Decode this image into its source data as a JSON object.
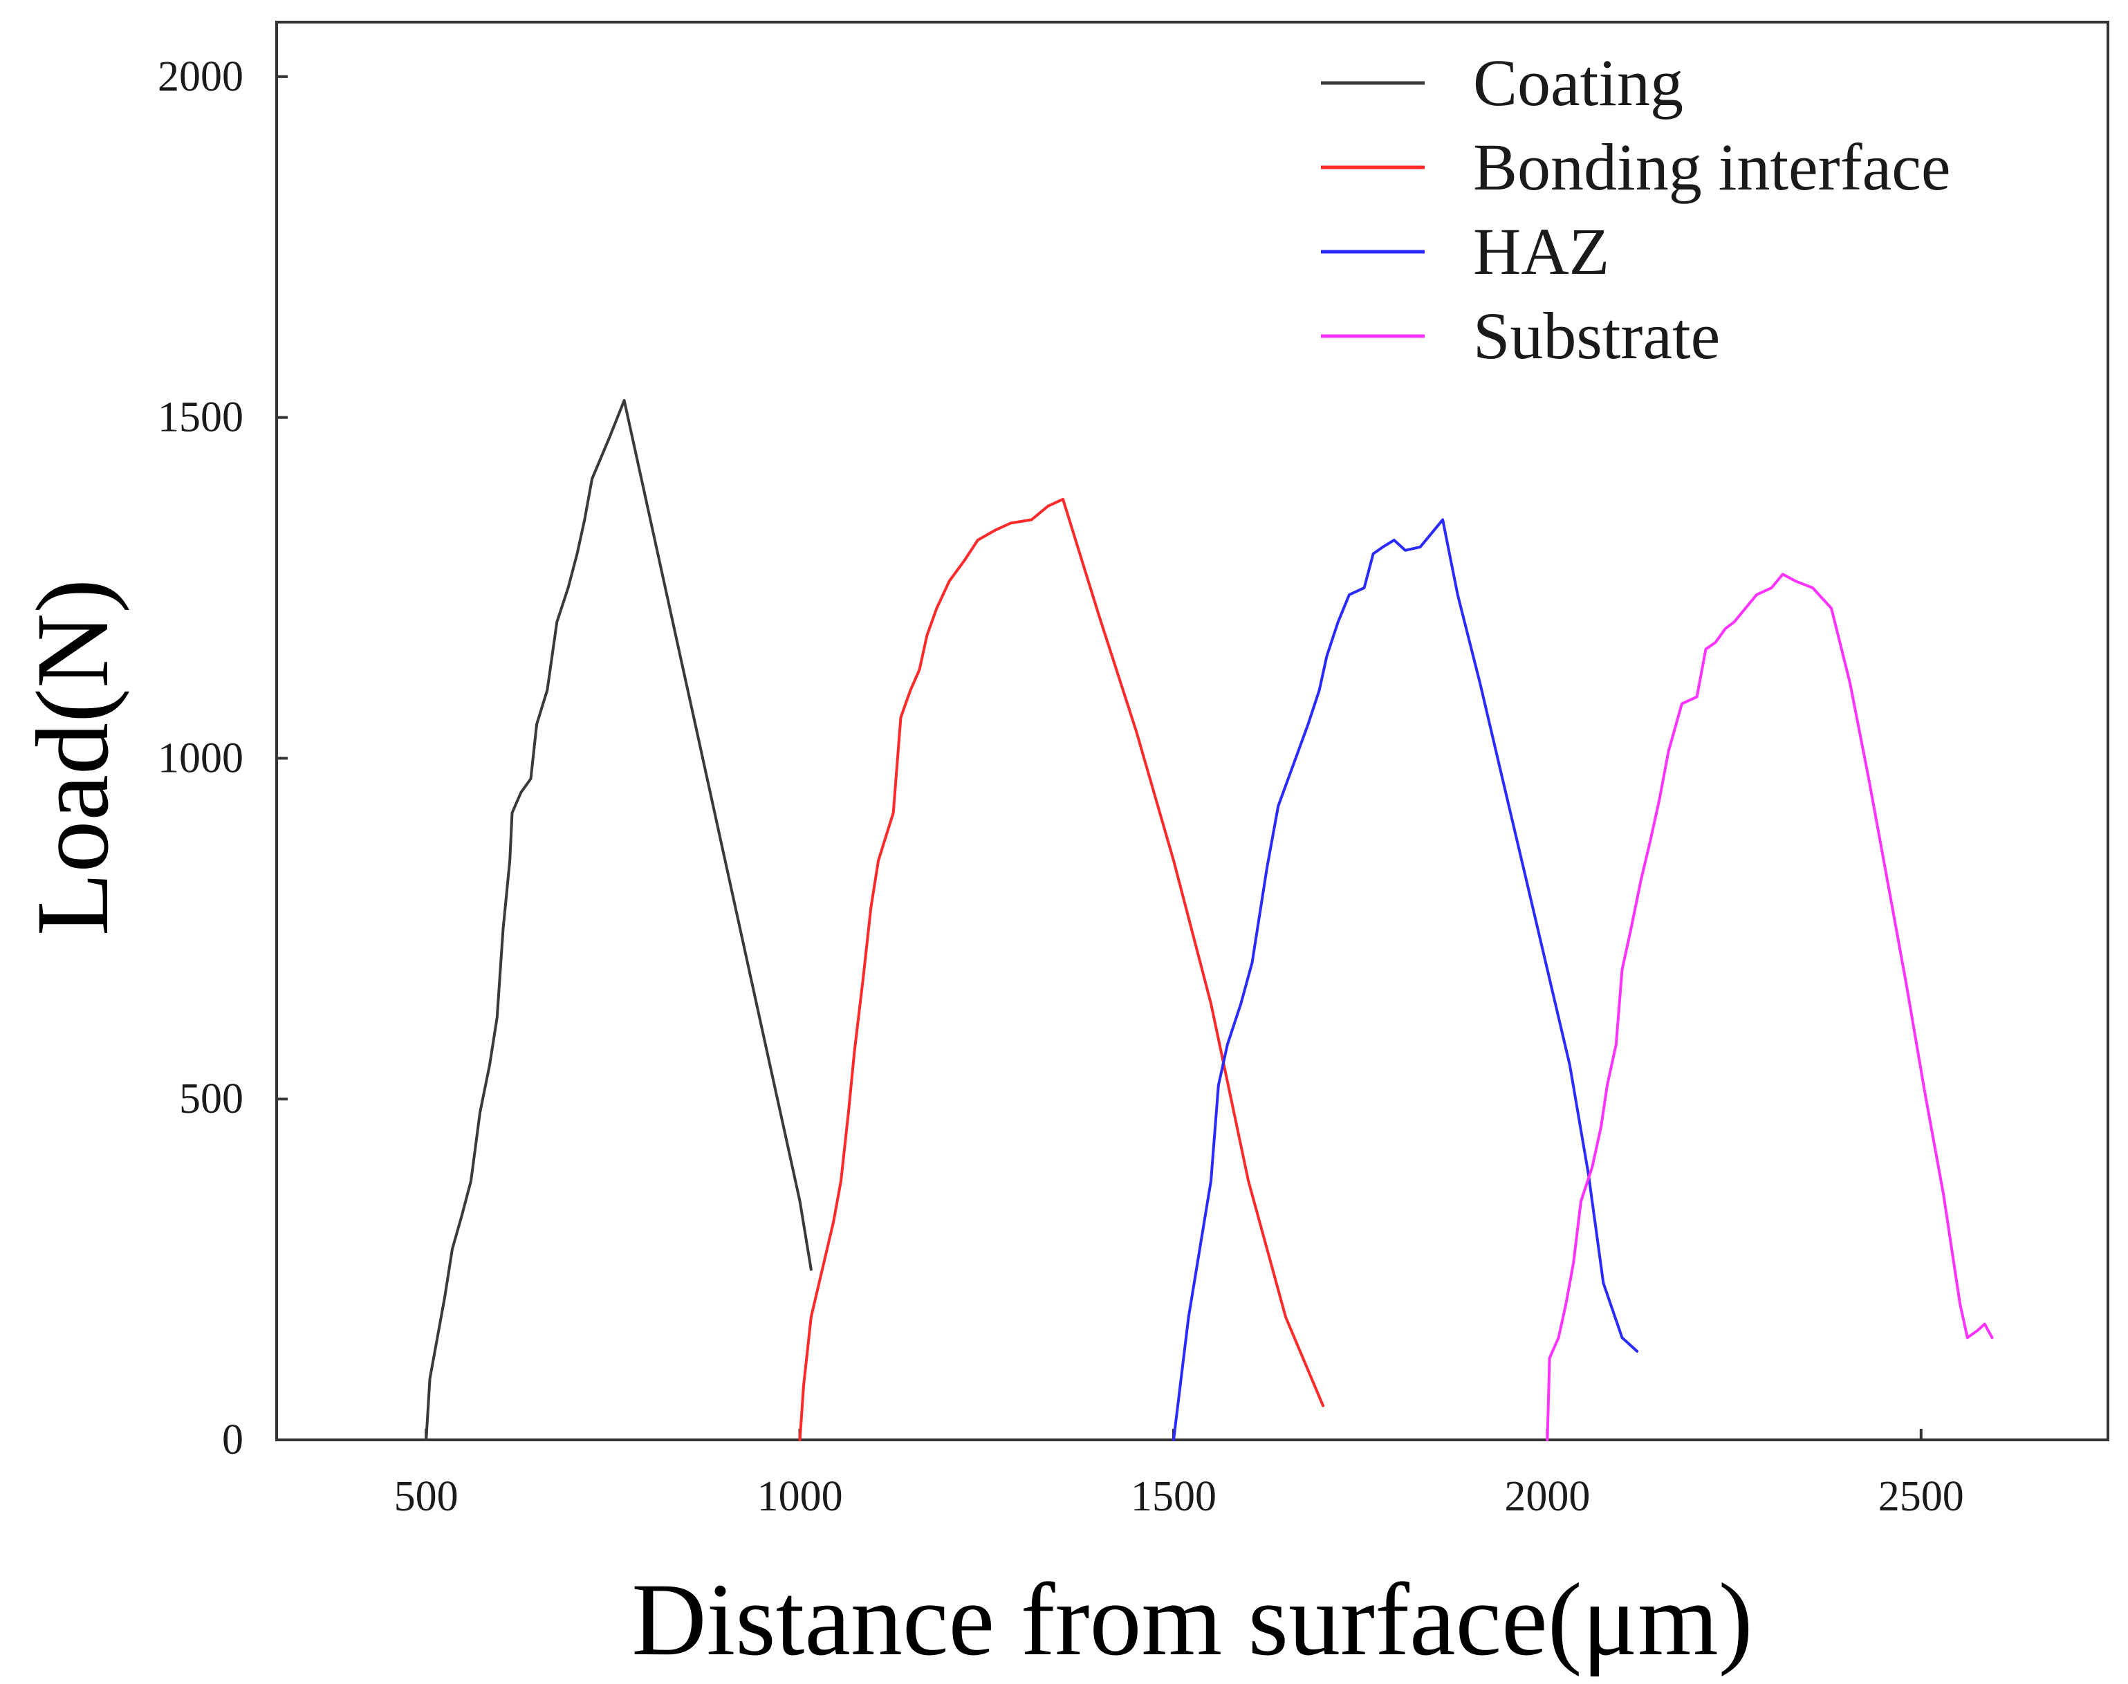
{
  "chart_data": {
    "type": "line",
    "title": "",
    "xlabel": "Distance from surface(μm)",
    "ylabel": "Load(N)",
    "xlim": [
      300,
      2750
    ],
    "ylim": [
      0,
      2080
    ],
    "xticks": [
      500,
      1000,
      1500,
      2000,
      2500
    ],
    "yticks": [
      0,
      500,
      1000,
      1500,
      2000
    ],
    "legend_position": "top-right",
    "series": [
      {
        "name": "Coating",
        "color": "#3a3a3a",
        "points": [
          [
            500,
            0
          ],
          [
            505,
            90
          ],
          [
            515,
            150
          ],
          [
            525,
            210
          ],
          [
            535,
            280
          ],
          [
            548,
            330
          ],
          [
            560,
            380
          ],
          [
            572,
            480
          ],
          [
            585,
            550
          ],
          [
            595,
            620
          ],
          [
            603,
            750
          ],
          [
            612,
            850
          ],
          [
            615,
            920
          ],
          [
            627,
            950
          ],
          [
            640,
            970
          ],
          [
            648,
            1050
          ],
          [
            662,
            1100
          ],
          [
            675,
            1200
          ],
          [
            690,
            1250
          ],
          [
            702,
            1300
          ],
          [
            712,
            1350
          ],
          [
            722,
            1410
          ],
          [
            745,
            1470
          ],
          [
            765,
            1525
          ],
          [
            780,
            1450
          ],
          [
            800,
            1350
          ],
          [
            820,
            1250
          ],
          [
            840,
            1150
          ],
          [
            860,
            1050
          ],
          [
            880,
            950
          ],
          [
            900,
            850
          ],
          [
            920,
            750
          ],
          [
            940,
            650
          ],
          [
            960,
            550
          ],
          [
            980,
            450
          ],
          [
            1000,
            350
          ],
          [
            1015,
            250
          ]
        ]
      },
      {
        "name": "Bonding interface",
        "color": "#ff2a2a",
        "points": [
          [
            1000,
            0
          ],
          [
            1005,
            80
          ],
          [
            1015,
            180
          ],
          [
            1030,
            250
          ],
          [
            1045,
            320
          ],
          [
            1055,
            380
          ],
          [
            1065,
            480
          ],
          [
            1073,
            570
          ],
          [
            1085,
            680
          ],
          [
            1095,
            780
          ],
          [
            1105,
            850
          ],
          [
            1125,
            920
          ],
          [
            1135,
            1060
          ],
          [
            1148,
            1100
          ],
          [
            1160,
            1130
          ],
          [
            1170,
            1180
          ],
          [
            1183,
            1220
          ],
          [
            1200,
            1260
          ],
          [
            1220,
            1290
          ],
          [
            1238,
            1320
          ],
          [
            1262,
            1335
          ],
          [
            1282,
            1345
          ],
          [
            1310,
            1350
          ],
          [
            1332,
            1370
          ],
          [
            1352,
            1380
          ],
          [
            1400,
            1210
          ],
          [
            1450,
            1040
          ],
          [
            1500,
            850
          ],
          [
            1550,
            640
          ],
          [
            1600,
            380
          ],
          [
            1650,
            180
          ],
          [
            1700,
            50
          ]
        ]
      },
      {
        "name": "HAZ",
        "color": "#2b2bff",
        "points": [
          [
            1500,
            0
          ],
          [
            1510,
            90
          ],
          [
            1520,
            180
          ],
          [
            1535,
            280
          ],
          [
            1550,
            380
          ],
          [
            1560,
            520
          ],
          [
            1572,
            580
          ],
          [
            1590,
            640
          ],
          [
            1605,
            700
          ],
          [
            1625,
            840
          ],
          [
            1640,
            930
          ],
          [
            1660,
            990
          ],
          [
            1680,
            1050
          ],
          [
            1695,
            1100
          ],
          [
            1705,
            1150
          ],
          [
            1720,
            1200
          ],
          [
            1735,
            1240
          ],
          [
            1755,
            1250
          ],
          [
            1767,
            1300
          ],
          [
            1780,
            1310
          ],
          [
            1795,
            1320
          ],
          [
            1810,
            1305
          ],
          [
            1830,
            1310
          ],
          [
            1845,
            1330
          ],
          [
            1860,
            1350
          ],
          [
            1880,
            1240
          ],
          [
            1910,
            1110
          ],
          [
            1940,
            970
          ],
          [
            1970,
            830
          ],
          [
            2000,
            690
          ],
          [
            2030,
            550
          ],
          [
            2055,
            390
          ],
          [
            2075,
            230
          ],
          [
            2100,
            150
          ],
          [
            2120,
            130
          ]
        ]
      },
      {
        "name": "Substrate",
        "color": "#ff33ff",
        "points": [
          [
            2000,
            0
          ],
          [
            2003,
            120
          ],
          [
            2015,
            150
          ],
          [
            2025,
            200
          ],
          [
            2035,
            260
          ],
          [
            2045,
            350
          ],
          [
            2060,
            400
          ],
          [
            2072,
            460
          ],
          [
            2080,
            520
          ],
          [
            2092,
            580
          ],
          [
            2100,
            690
          ],
          [
            2112,
            750
          ],
          [
            2125,
            820
          ],
          [
            2138,
            880
          ],
          [
            2150,
            940
          ],
          [
            2162,
            1010
          ],
          [
            2180,
            1080
          ],
          [
            2200,
            1090
          ],
          [
            2212,
            1160
          ],
          [
            2225,
            1170
          ],
          [
            2238,
            1190
          ],
          [
            2250,
            1200
          ],
          [
            2265,
            1220
          ],
          [
            2280,
            1240
          ],
          [
            2300,
            1250
          ],
          [
            2315,
            1270
          ],
          [
            2332,
            1260
          ],
          [
            2355,
            1250
          ],
          [
            2380,
            1220
          ],
          [
            2405,
            1110
          ],
          [
            2430,
            970
          ],
          [
            2455,
            820
          ],
          [
            2480,
            670
          ],
          [
            2505,
            510
          ],
          [
            2530,
            360
          ],
          [
            2552,
            200
          ],
          [
            2562,
            150
          ],
          [
            2575,
            160
          ],
          [
            2585,
            170
          ],
          [
            2595,
            150
          ]
        ]
      }
    ]
  }
}
